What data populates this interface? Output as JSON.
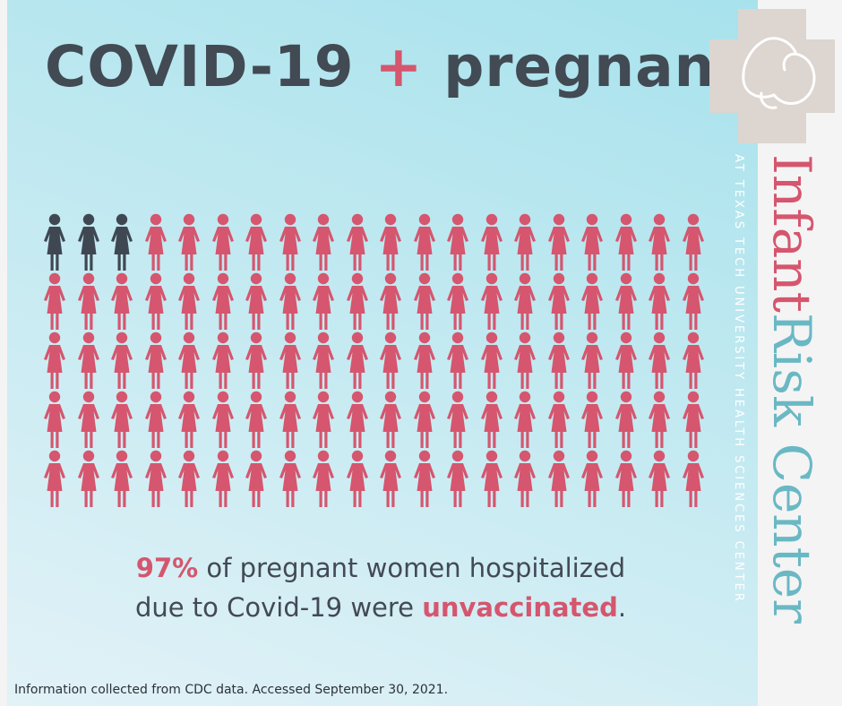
{
  "title": {
    "part1": "COVID-19",
    "plus": "+",
    "part2": "pregnancy"
  },
  "icon_grid": {
    "rows": 5,
    "columns": 20,
    "total": 100,
    "vaccinated_count": 3,
    "unvaccinated_count": 97,
    "vaccinated_color": "#3f4852",
    "unvaccinated_color": "#d5566e"
  },
  "stat": {
    "percent": "97%",
    "line1_rest": " of pregnant women hospitalized",
    "line2_start": "due to Covid-19 were ",
    "highlight": "unvaccinated",
    "line2_end": "."
  },
  "footnote": "Information collected from CDC data. Accessed September 30, 2021.",
  "logo": {
    "word1": "Infant",
    "word2": "Risk",
    "word3": "Center",
    "subtitle": "AT TEXAS TECH UNIVERSITY HEALTH SCIENCES CENTER",
    "colors": {
      "infant": "#d5566e",
      "risk": "#6ab8c4",
      "center": "#6ab8c4",
      "cross": "#dcd5d0"
    }
  }
}
